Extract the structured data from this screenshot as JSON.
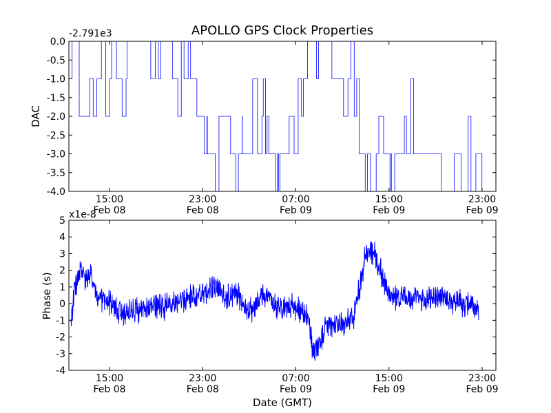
{
  "title": "APOLLO GPS Clock Properties",
  "chart_data": [
    {
      "type": "line",
      "ylabel": "DAC",
      "offset_label": "-2.791e3",
      "ylim": [
        -4.0,
        0.0
      ],
      "yticks": [
        "0.0",
        "-0.5",
        "-1.0",
        "-1.5",
        "-2.0",
        "-2.5",
        "-3.0",
        "-3.5",
        "-4.0"
      ],
      "xticks": [
        {
          "time": "15:00",
          "date": "Feb 08"
        },
        {
          "time": "23:00",
          "date": "Feb 08"
        },
        {
          "time": "07:00",
          "date": "Feb 09"
        },
        {
          "time": "15:00",
          "date": "Feb 09"
        },
        {
          "time": "23:00",
          "date": "Feb 09"
        }
      ],
      "color": "#0000ff",
      "x_hours": [
        11.7,
        12.4,
        12.6,
        13.0,
        13.3,
        13.6,
        14.3,
        15.0,
        15.6,
        16.5,
        17.4,
        18.4,
        19.4,
        20.4,
        21.4,
        22.5,
        23.4,
        24.4,
        25.4,
        26.4,
        27.3,
        28.4,
        29.4,
        30.3,
        31.2,
        32.0,
        33.0,
        34.1,
        35.1,
        36.1,
        36.6,
        37.3,
        37.9,
        38.6,
        39.1,
        40.4,
        41.4,
        42.3,
        42.6,
        43.5,
        44.6,
        45.2,
        45.8,
        46.7
      ],
      "y": [
        0,
        -1,
        -1,
        -2,
        -1,
        -2,
        -1,
        0,
        -1,
        0,
        0,
        -1,
        0,
        -1,
        -1,
        -2,
        -3,
        -2,
        -3,
        -3,
        -2,
        -3,
        -3,
        -3,
        -1,
        0,
        0,
        -1,
        -1,
        -2,
        -3,
        -4,
        -3,
        -3,
        -3,
        -2,
        -3,
        -3,
        -3,
        -4,
        -3,
        -4,
        -3,
        -3
      ]
    },
    {
      "type": "line",
      "ylabel": "Phase (s)",
      "xlabel": "Date (GMT)",
      "offset_label": "x1e-8",
      "ylim": [
        -4,
        5
      ],
      "yticks": [
        "5",
        "4",
        "3",
        "2",
        "1",
        "0",
        "-1",
        "-2",
        "-3",
        "-4"
      ],
      "xticks": [
        {
          "time": "15:00",
          "date": "Feb 08"
        },
        {
          "time": "23:00",
          "date": "Feb 08"
        },
        {
          "time": "07:00",
          "date": "Feb 09"
        },
        {
          "time": "15:00",
          "date": "Feb 09"
        },
        {
          "time": "23:00",
          "date": "Feb 09"
        }
      ],
      "color": "#0000ff",
      "x_hours": [
        11.7,
        12.0,
        12.5,
        13.0,
        13.5,
        14.0,
        14.5,
        15.0,
        16.0,
        17.0,
        18.0,
        19.0,
        20.0,
        21.0,
        22.0,
        23.0,
        24.0,
        25.0,
        26.0,
        27.0,
        27.5,
        28.0,
        29.0,
        30.0,
        31.0,
        32.0,
        32.5,
        33.0,
        33.5,
        34.0,
        35.0,
        36.0,
        36.5,
        37.0,
        37.5,
        38.0,
        38.5,
        39.0,
        40.0,
        41.0,
        42.0,
        43.0,
        44.0,
        45.0,
        46.0,
        46.7
      ],
      "y": [
        -1.0,
        0.8,
        2.0,
        1.4,
        1.6,
        0.2,
        0.2,
        0.0,
        -0.6,
        -0.4,
        -0.3,
        -0.2,
        -0.2,
        0.2,
        0.4,
        0.6,
        1.0,
        0.4,
        0.6,
        -0.6,
        0.0,
        0.5,
        0.1,
        -0.3,
        -0.2,
        -0.6,
        -3.0,
        -2.4,
        -1.5,
        -1.4,
        -1.2,
        -0.7,
        1.0,
        3.0,
        3.2,
        2.6,
        1.5,
        0.5,
        0.4,
        0.2,
        0.3,
        0.5,
        0.3,
        0.1,
        -0.2,
        -0.4
      ]
    }
  ]
}
